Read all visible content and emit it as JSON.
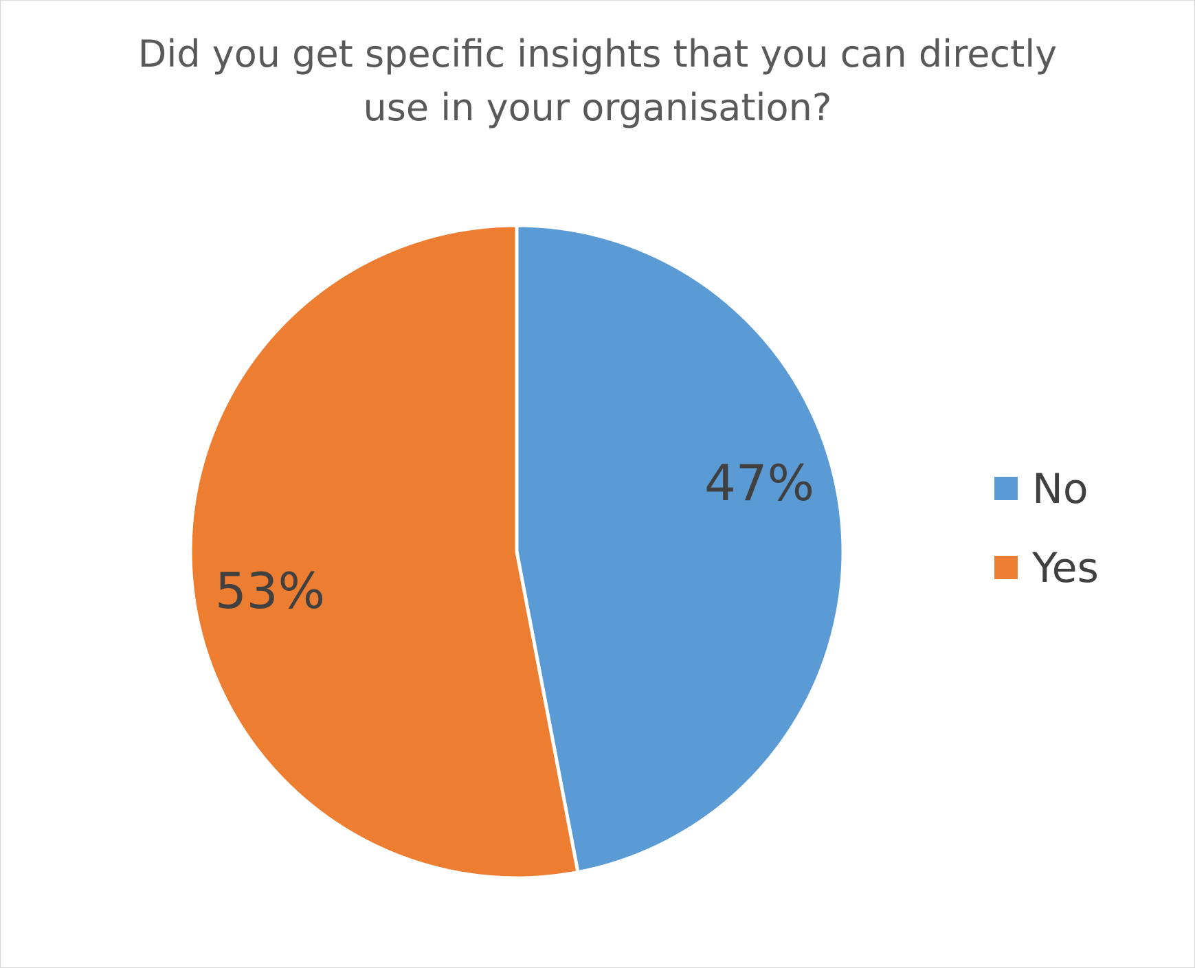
{
  "chart_data": {
    "type": "pie",
    "title_lines": [
      "Did you get specific insights that you can directly",
      "use in your organisation?"
    ],
    "categories": [
      "No",
      "Yes"
    ],
    "values": [
      47,
      53
    ],
    "data_labels": [
      "47%",
      "53%"
    ],
    "colors": [
      "#5b9bd5",
      "#ed7d31"
    ],
    "legend": {
      "placement": "right",
      "entries": [
        "No",
        "Yes"
      ]
    }
  }
}
